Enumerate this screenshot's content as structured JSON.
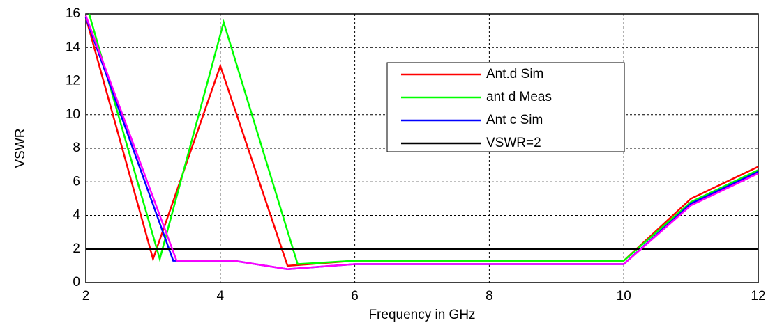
{
  "chart_data": {
    "type": "line",
    "xlabel": "Frequency in GHz",
    "ylabel": "VSWR",
    "xlim": [
      2,
      12
    ],
    "xticks": [
      2,
      4,
      6,
      8,
      10,
      12
    ],
    "ylim": [
      0,
      16
    ],
    "yticks": [
      0,
      2,
      4,
      6,
      8,
      10,
      12,
      14,
      16
    ],
    "grid": true,
    "legend": "northeast",
    "series": [
      {
        "name": "Ant.d Sim",
        "color": "#ff0000",
        "x": [
          2,
          3,
          4,
          5,
          6,
          10,
          11,
          12
        ],
        "values": [
          15.8,
          1.4,
          12.9,
          1.0,
          1.3,
          1.3,
          5.0,
          6.9
        ]
      },
      {
        "name": "ant d Meas",
        "color": "#00ff00",
        "x": [
          2.05,
          3.1,
          4.05,
          5.15,
          6,
          10,
          11,
          12
        ],
        "values": [
          16,
          1.4,
          15.5,
          1.1,
          1.3,
          1.3,
          4.8,
          6.7
        ]
      },
      {
        "name": "Ant c Sim",
        "color": "#0000ff",
        "x": [
          2,
          3.3,
          4.2,
          5,
          6,
          10,
          11,
          12
        ],
        "values": [
          15.8,
          1.3,
          1.3,
          0.8,
          1.1,
          1.1,
          4.7,
          6.6
        ]
      },
      {
        "name": "VSWR=2",
        "color": "#000000",
        "x": [
          2,
          12
        ],
        "values": [
          2,
          2
        ]
      },
      {
        "color": "#ff00ff",
        "x": [
          2,
          3.35,
          4.2,
          5,
          6,
          10,
          11,
          12
        ],
        "values": [
          15.9,
          1.3,
          1.3,
          0.8,
          1.1,
          1.1,
          4.6,
          6.5
        ]
      }
    ]
  }
}
